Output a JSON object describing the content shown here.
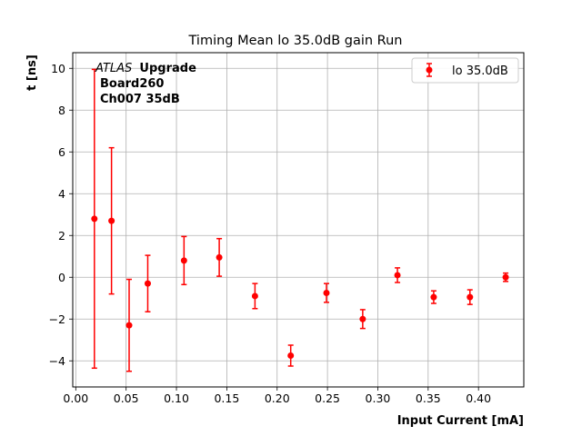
{
  "chart_data": {
    "type": "scatter",
    "title": "Timing Mean lo 35.0dB gain Run",
    "xlabel": "Input Current [mA]",
    "ylabel": "t [ns]",
    "xlim": [
      -0.003,
      0.445
    ],
    "ylim": [
      -5.25,
      10.75
    ],
    "xticks": [
      "0.00",
      "0.05",
      "0.10",
      "0.15",
      "0.20",
      "0.25",
      "0.30",
      "0.35",
      "0.40"
    ],
    "yticks": [
      "−4",
      "−2",
      "0",
      "2",
      "4",
      "6",
      "8",
      "10"
    ],
    "grid": true,
    "legend_position": "top-right",
    "annotation": {
      "italic": "ATLAS",
      "bold": "Upgrade",
      "line2": "Board260",
      "line3": "Ch007 35dB"
    },
    "series": [
      {
        "name": "lo 35.0dB",
        "color": "#ff0000",
        "x": [
          0.0185,
          0.0355,
          0.053,
          0.0715,
          0.1075,
          0.1425,
          0.178,
          0.2135,
          0.249,
          0.285,
          0.3195,
          0.3555,
          0.3915,
          0.427
        ],
        "y": [
          2.8,
          2.7,
          -2.3,
          -0.3,
          0.8,
          0.95,
          -0.9,
          -3.75,
          -0.75,
          -2.0,
          0.1,
          -0.95,
          -0.95,
          0.0
        ],
        "err": [
          7.15,
          3.5,
          2.2,
          1.35,
          1.15,
          0.9,
          0.6,
          0.5,
          0.45,
          0.45,
          0.35,
          0.3,
          0.35,
          0.2
        ]
      }
    ]
  }
}
